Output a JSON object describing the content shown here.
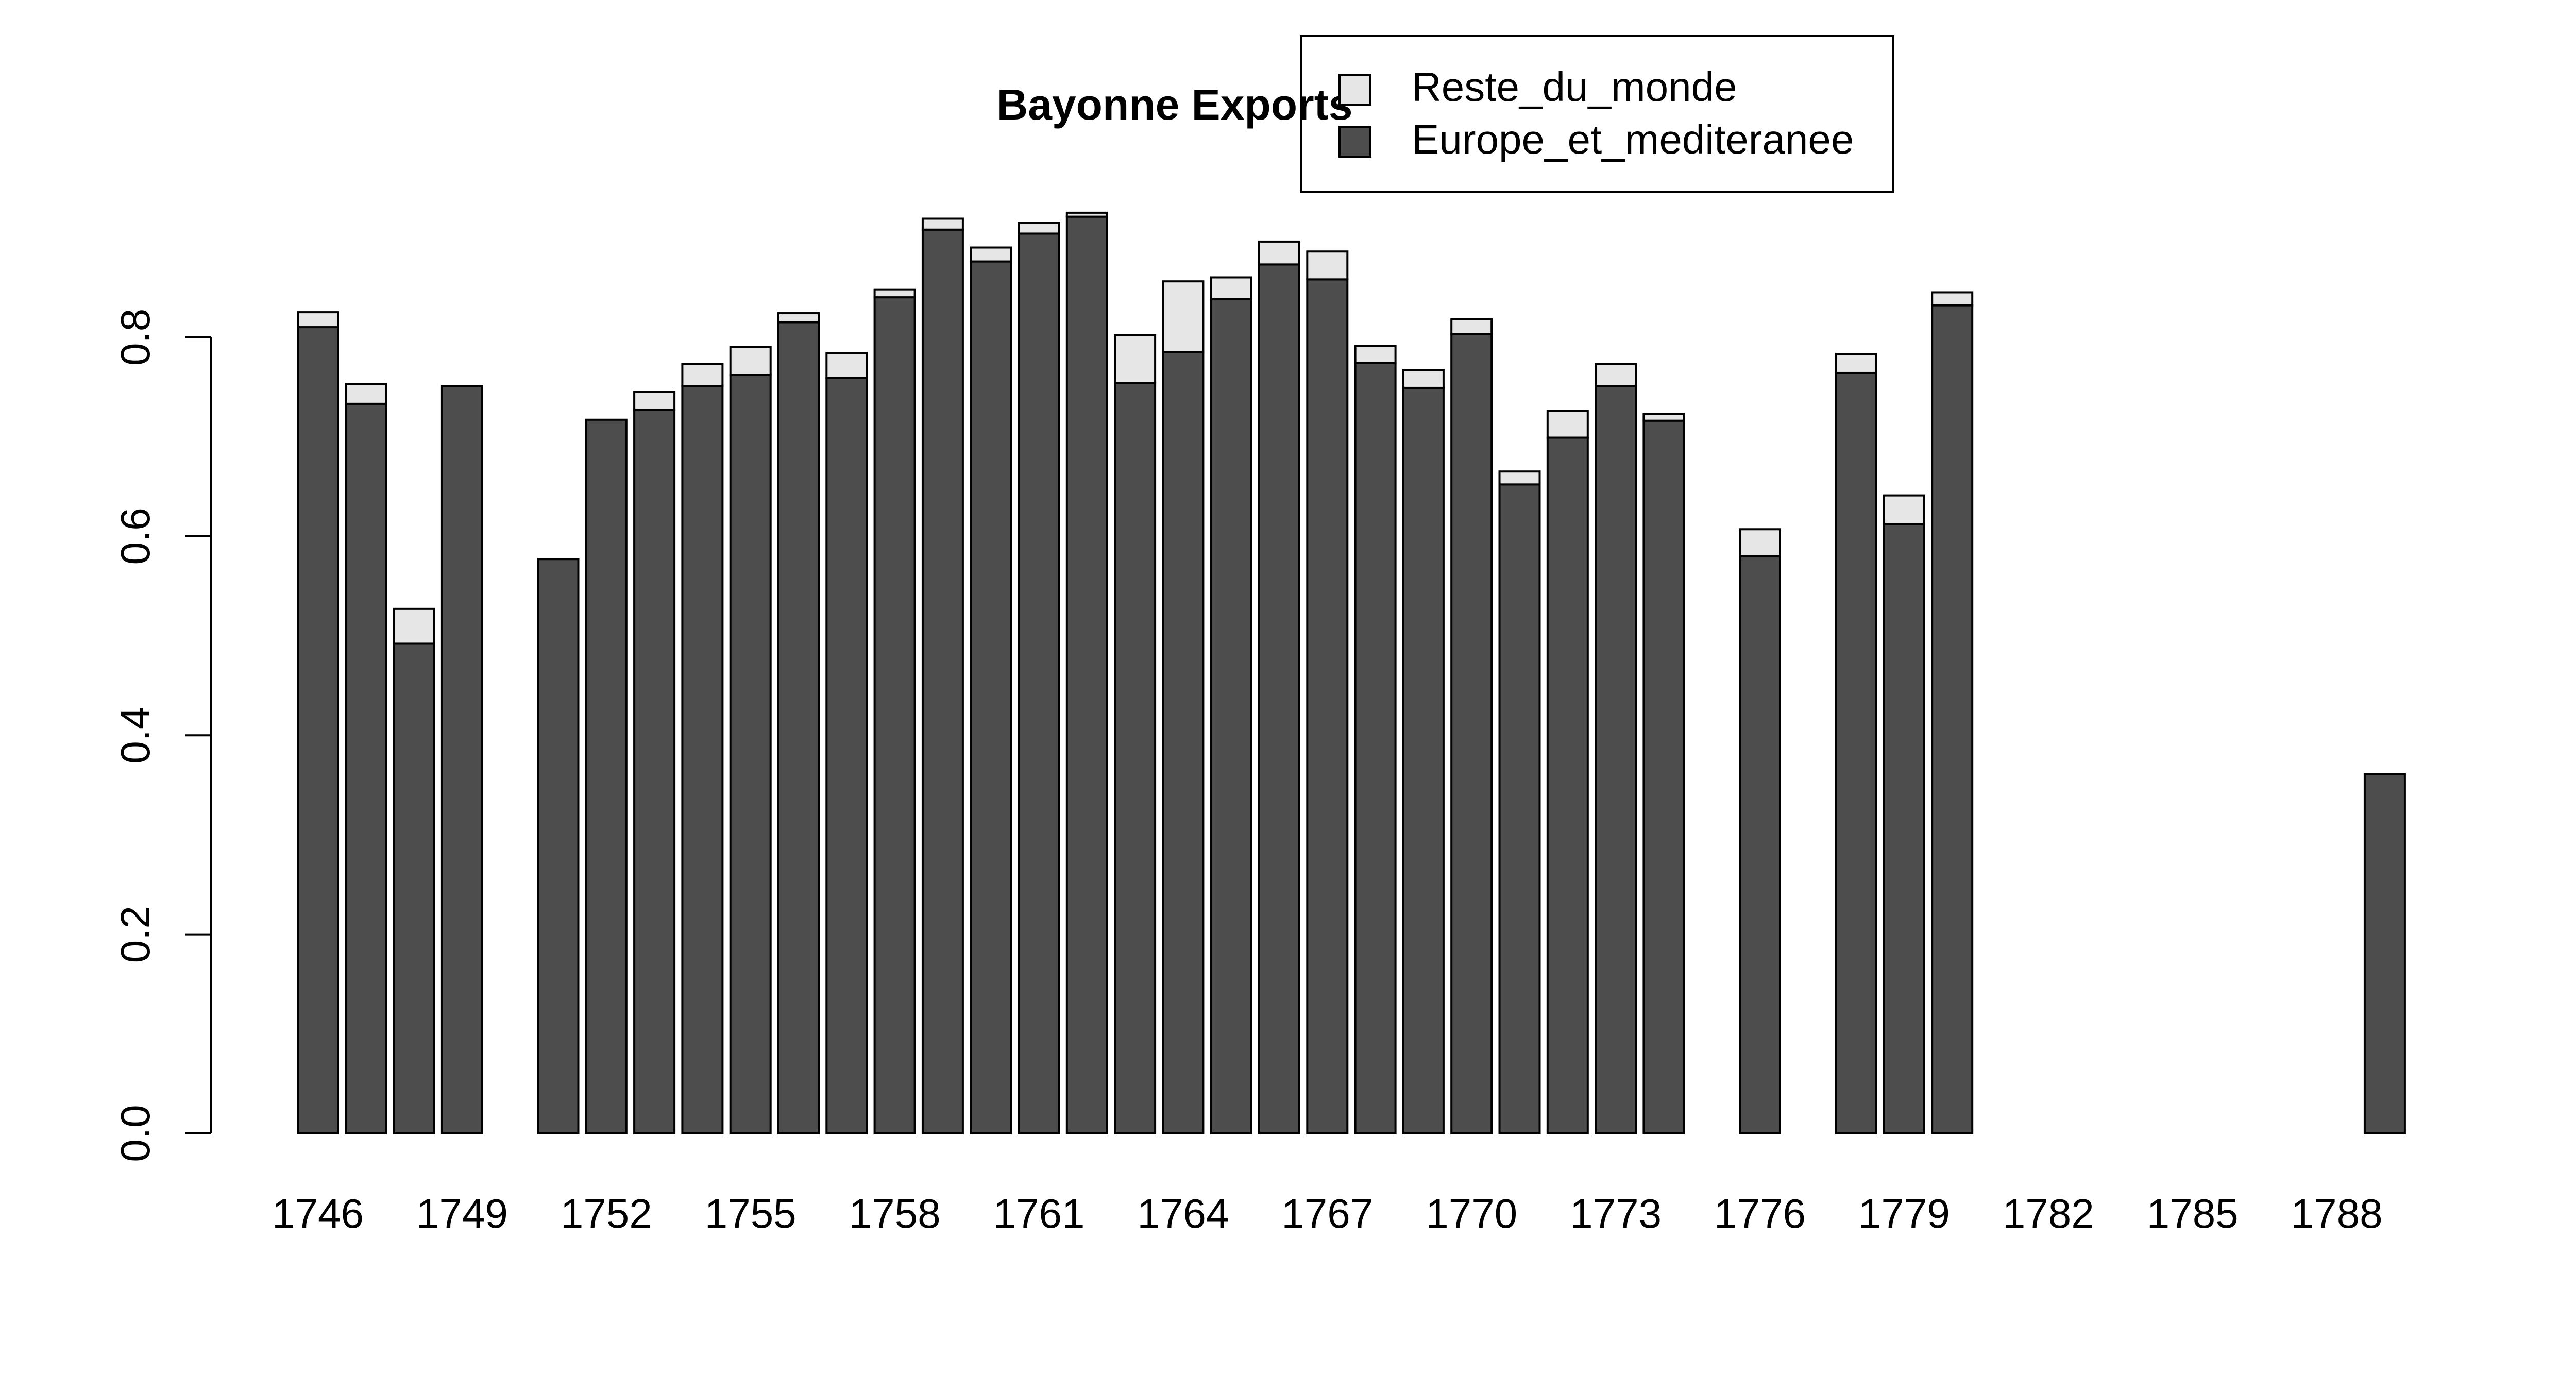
{
  "chart_data": {
    "type": "bar",
    "stacked": true,
    "title": "Bayonne Exports",
    "xlabel": "",
    "ylabel": "",
    "ylim": [
      0,
      0.92
    ],
    "yticks": [
      "0.0",
      "0.2",
      "0.4",
      "0.6",
      "0.8"
    ],
    "ytick_values": [
      0.0,
      0.2,
      0.4,
      0.6,
      0.8
    ],
    "xticks": [
      "1746",
      "1749",
      "1752",
      "1755",
      "1758",
      "1761",
      "1764",
      "1767",
      "1770",
      "1773",
      "1776",
      "1779",
      "1782",
      "1785",
      "1788"
    ],
    "grid": false,
    "legend_position": "top-right",
    "categories": [
      1746,
      1747,
      1748,
      1749,
      1750,
      1751,
      1752,
      1753,
      1754,
      1755,
      1756,
      1757,
      1758,
      1759,
      1760,
      1761,
      1762,
      1763,
      1764,
      1765,
      1766,
      1767,
      1768,
      1769,
      1770,
      1771,
      1772,
      1773,
      1774,
      1775,
      1776,
      1777,
      1778,
      1779,
      1780,
      1781,
      1782,
      1783,
      1784,
      1785,
      1786,
      1787,
      1788,
      1789
    ],
    "series": [
      {
        "name": "Europe_et_mediteranee",
        "color": "#4d4d4d",
        "values": [
          0.81,
          0.733,
          0.492,
          0.751,
          null,
          0.577,
          0.717,
          0.727,
          0.751,
          0.762,
          0.815,
          0.759,
          0.84,
          0.908,
          0.876,
          0.904,
          0.921,
          0.754,
          0.785,
          0.838,
          0.873,
          0.858,
          0.774,
          0.749,
          0.803,
          0.652,
          0.699,
          0.751,
          0.716,
          null,
          0.58,
          null,
          0.764,
          0.612,
          0.832,
          null,
          null,
          null,
          null,
          null,
          null,
          null,
          null,
          0.361
        ]
      },
      {
        "name": "Reste_du_monde",
        "color": "#e6e6e6",
        "values": [
          0.015,
          0.02,
          0.035,
          0.0,
          null,
          0.0,
          0.0,
          0.018,
          0.022,
          0.028,
          0.009,
          0.025,
          0.008,
          0.011,
          0.014,
          0.011,
          0.004,
          0.048,
          0.071,
          0.022,
          0.023,
          0.028,
          0.017,
          0.018,
          0.015,
          0.013,
          0.027,
          0.022,
          0.007,
          null,
          0.027,
          null,
          0.019,
          0.029,
          0.013,
          null,
          null,
          null,
          null,
          null,
          null,
          null,
          null,
          0.0
        ]
      }
    ]
  }
}
